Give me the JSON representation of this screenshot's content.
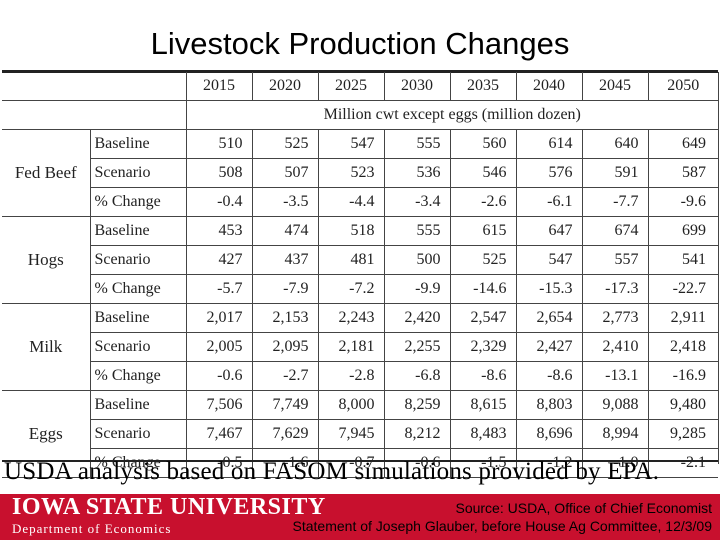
{
  "title": "Livestock Production Changes",
  "table": {
    "years": [
      "2015",
      "2020",
      "2025",
      "2030",
      "2035",
      "2040",
      "2045",
      "2050"
    ],
    "unit_note": "Million cwt except eggs (million dozen)",
    "groups": [
      {
        "product": "Fed Beef",
        "rows": [
          {
            "label": "Baseline",
            "values": [
              "510",
              "525",
              "547",
              "555",
              "560",
              "614",
              "640",
              "649"
            ]
          },
          {
            "label": "Scenario",
            "values": [
              "508",
              "507",
              "523",
              "536",
              "546",
              "576",
              "591",
              "587"
            ]
          },
          {
            "label": "% Change",
            "values": [
              "-0.4",
              "-3.5",
              "-4.4",
              "-3.4",
              "-2.6",
              "-6.1",
              "-7.7",
              "-9.6"
            ]
          }
        ]
      },
      {
        "product": "Hogs",
        "rows": [
          {
            "label": "Baseline",
            "values": [
              "453",
              "474",
              "518",
              "555",
              "615",
              "647",
              "674",
              "699"
            ]
          },
          {
            "label": "Scenario",
            "values": [
              "427",
              "437",
              "481",
              "500",
              "525",
              "547",
              "557",
              "541"
            ]
          },
          {
            "label": "% Change",
            "values": [
              "-5.7",
              "-7.9",
              "-7.2",
              "-9.9",
              "-14.6",
              "-15.3",
              "-17.3",
              "-22.7"
            ]
          }
        ]
      },
      {
        "product": "Milk",
        "rows": [
          {
            "label": "Baseline",
            "values": [
              "2,017",
              "2,153",
              "2,243",
              "2,420",
              "2,547",
              "2,654",
              "2,773",
              "2,911"
            ]
          },
          {
            "label": "Scenario",
            "values": [
              "2,005",
              "2,095",
              "2,181",
              "2,255",
              "2,329",
              "2,427",
              "2,410",
              "2,418"
            ]
          },
          {
            "label": "% Change",
            "values": [
              "-0.6",
              "-2.7",
              "-2.8",
              "-6.8",
              "-8.6",
              "-8.6",
              "-13.1",
              "-16.9"
            ]
          }
        ]
      },
      {
        "product": "Eggs",
        "rows": [
          {
            "label": "Baseline",
            "values": [
              "7,506",
              "7,749",
              "8,000",
              "8,259",
              "8,615",
              "8,803",
              "9,088",
              "9,480"
            ]
          },
          {
            "label": "Scenario",
            "values": [
              "7,467",
              "7,629",
              "7,945",
              "8,212",
              "8,483",
              "8,696",
              "8,994",
              "9,285"
            ]
          },
          {
            "label": "% Change",
            "values": [
              "-0.5",
              "-1.6",
              "-0.7",
              "-0.6",
              "-1.5",
              "-1.2",
              "-1.0",
              "-2.1"
            ]
          }
        ]
      }
    ]
  },
  "analysis_note": "USDA analysis based on FASOM simulations provided by EPA.",
  "footer": {
    "university": "Iowa State University",
    "department": "Department of Economics",
    "source_line1": "Source: USDA, Office of Chief Economist",
    "source_line2": "Statement of Joseph Glauber, before House Ag Committee, 12/3/09",
    "brand_color": "#c8102e"
  }
}
